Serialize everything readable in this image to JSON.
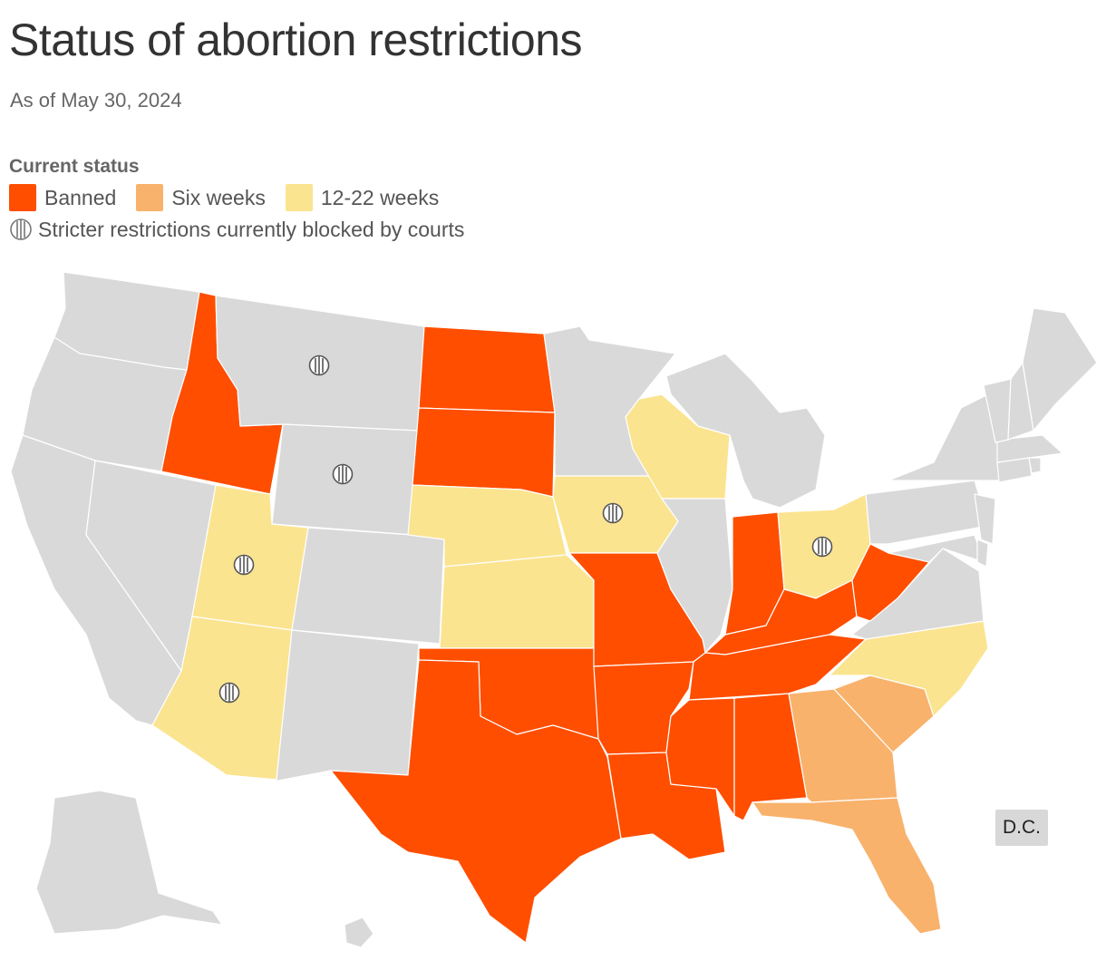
{
  "title": "Status of abortion restrictions",
  "subtitle": "As of May 30, 2024",
  "legend": {
    "title": "Current status",
    "items": [
      {
        "label": "Banned",
        "color": "#ff4e00"
      },
      {
        "label": "Six weeks",
        "color": "#f8b26c"
      },
      {
        "label": "12-22 weeks",
        "color": "#fbe490"
      }
    ],
    "blocked_label": "Stricter restrictions currently blocked by courts"
  },
  "colors": {
    "banned": "#ff4e00",
    "six_weeks": "#f8b26c",
    "weeks_12_22": "#fbe490",
    "other": "#d9d9d9"
  },
  "dc_label": "D.C.",
  "states": {
    "banned": [
      "Idaho",
      "North Dakota",
      "South Dakota",
      "Missouri",
      "Oklahoma",
      "Texas",
      "Arkansas",
      "Louisiana",
      "Mississippi",
      "Alabama",
      "Tennessee",
      "Kentucky",
      "Indiana",
      "West Virginia"
    ],
    "six_weeks": [
      "Georgia",
      "South Carolina",
      "Florida"
    ],
    "weeks_12_22": [
      "Utah",
      "Arizona",
      "Nebraska",
      "Kansas",
      "Iowa",
      "Wisconsin",
      "Ohio",
      "North Carolina"
    ],
    "blocked_by_courts": [
      "Montana",
      "Wyoming",
      "Utah",
      "Arizona",
      "Iowa",
      "Ohio"
    ]
  }
}
